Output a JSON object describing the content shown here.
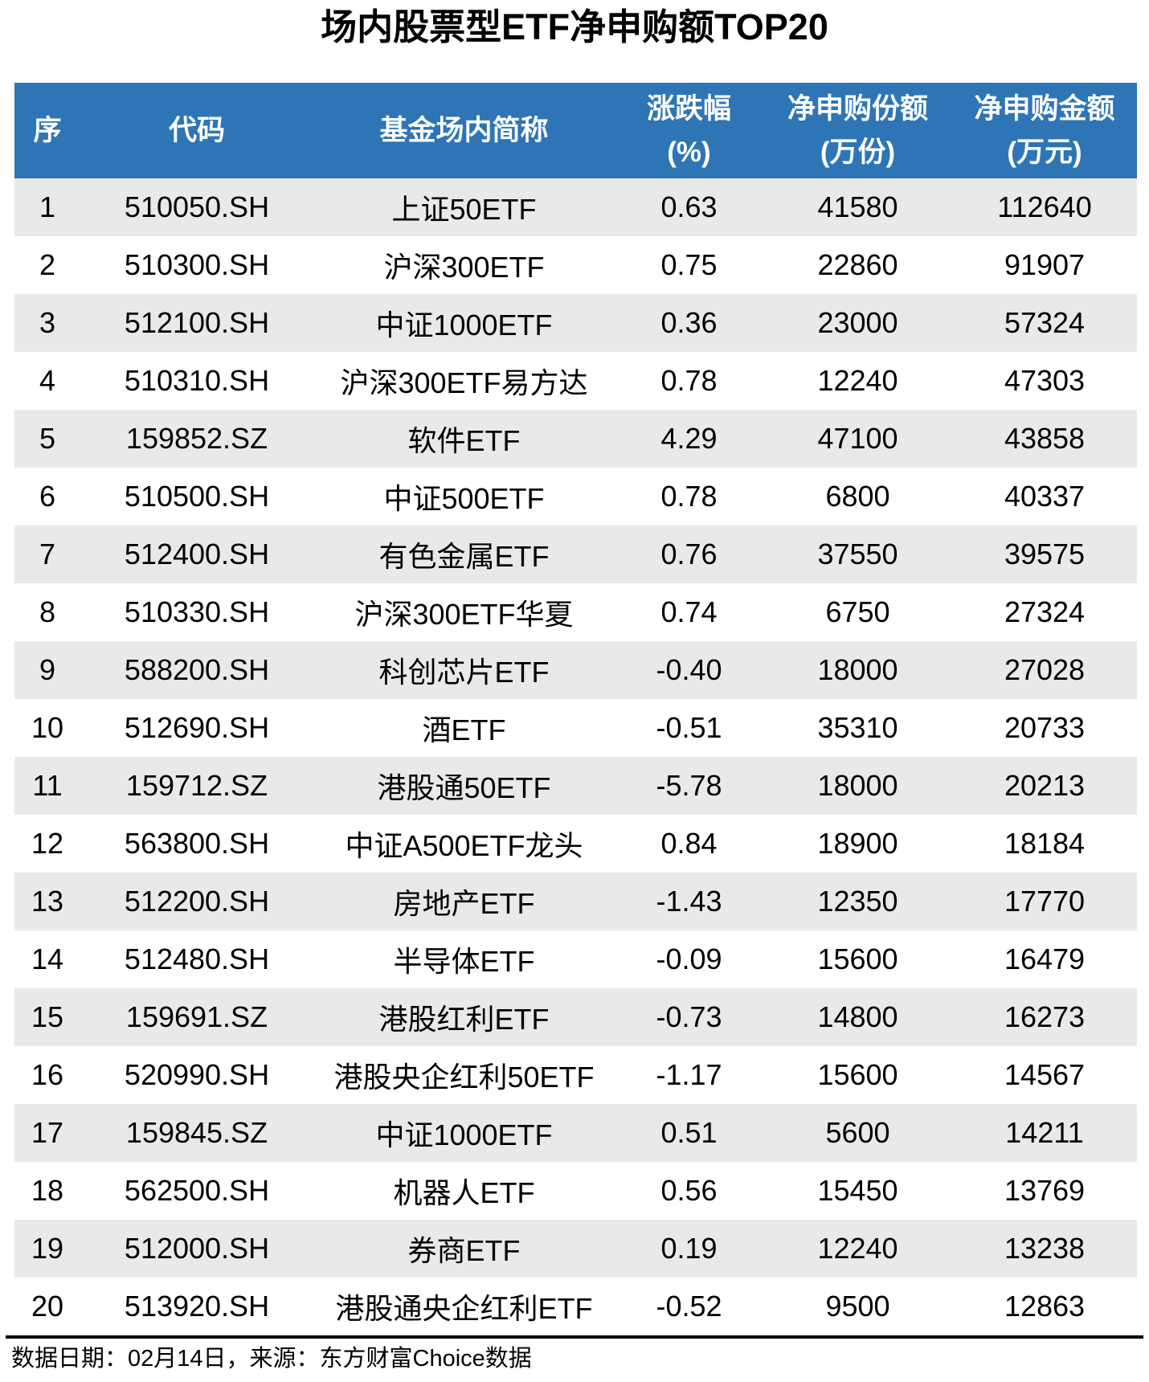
{
  "chart_data": {
    "type": "table",
    "title": "场内股票型ETF净申购额TOP20",
    "columns": [
      {
        "label": "序",
        "unit": ""
      },
      {
        "label": "代码",
        "unit": ""
      },
      {
        "label": "基金场内简称",
        "unit": ""
      },
      {
        "label": "涨跌幅",
        "unit": "(%)"
      },
      {
        "label": "净申购份额",
        "unit": "(万份)"
      },
      {
        "label": "净申购金额",
        "unit": "(万元)"
      }
    ],
    "rows": [
      [
        "1",
        "510050.SH",
        "上证50ETF",
        "0.63",
        "41580",
        "112640"
      ],
      [
        "2",
        "510300.SH",
        "沪深300ETF",
        "0.75",
        "22860",
        "91907"
      ],
      [
        "3",
        "512100.SH",
        "中证1000ETF",
        "0.36",
        "23000",
        "57324"
      ],
      [
        "4",
        "510310.SH",
        "沪深300ETF易方达",
        "0.78",
        "12240",
        "47303"
      ],
      [
        "5",
        "159852.SZ",
        "软件ETF",
        "4.29",
        "47100",
        "43858"
      ],
      [
        "6",
        "510500.SH",
        "中证500ETF",
        "0.78",
        "6800",
        "40337"
      ],
      [
        "7",
        "512400.SH",
        "有色金属ETF",
        "0.76",
        "37550",
        "39575"
      ],
      [
        "8",
        "510330.SH",
        "沪深300ETF华夏",
        "0.74",
        "6750",
        "27324"
      ],
      [
        "9",
        "588200.SH",
        "科创芯片ETF",
        "-0.40",
        "18000",
        "27028"
      ],
      [
        "10",
        "512690.SH",
        "酒ETF",
        "-0.51",
        "35310",
        "20733"
      ],
      [
        "11",
        "159712.SZ",
        "港股通50ETF",
        "-5.78",
        "18000",
        "20213"
      ],
      [
        "12",
        "563800.SH",
        "中证A500ETF龙头",
        "0.84",
        "18900",
        "18184"
      ],
      [
        "13",
        "512200.SH",
        "房地产ETF",
        "-1.43",
        "12350",
        "17770"
      ],
      [
        "14",
        "512480.SH",
        "半导体ETF",
        "-0.09",
        "15600",
        "16479"
      ],
      [
        "15",
        "159691.SZ",
        "港股红利ETF",
        "-0.73",
        "14800",
        "16273"
      ],
      [
        "16",
        "520990.SH",
        "港股央企红利50ETF",
        "-1.17",
        "15600",
        "14567"
      ],
      [
        "17",
        "159845.SZ",
        "中证1000ETF",
        "0.51",
        "5600",
        "14211"
      ],
      [
        "18",
        "562500.SH",
        "机器人ETF",
        "0.56",
        "15450",
        "13769"
      ],
      [
        "19",
        "512000.SH",
        "券商ETF",
        "0.19",
        "12240",
        "13238"
      ],
      [
        "20",
        "513920.SH",
        "港股通央企红利ETF",
        "-0.52",
        "9500",
        "12863"
      ]
    ]
  },
  "footer": {
    "source_note": "数据日期：02月14日，来源：东方财富Choice数据"
  },
  "colors": {
    "header_bg": "#2E75B6",
    "header_text": "#FFFFFF",
    "row_alt_bg": "#E9E9E9",
    "text": "#000000",
    "divider": "#000000"
  }
}
